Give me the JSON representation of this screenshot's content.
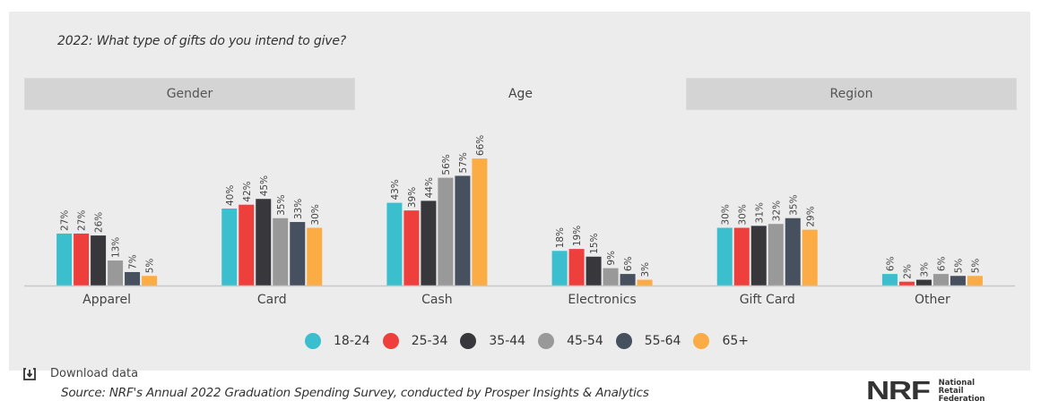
{
  "question": "2022: What type of gifts do you intend to give?",
  "tabs": [
    {
      "label": "Gender",
      "active": false
    },
    {
      "label": "Age",
      "active": true
    },
    {
      "label": "Region",
      "active": false
    }
  ],
  "download_label": "Download data",
  "download_icon": "download-icon",
  "source": "Source: NRF's Annual 2022 Graduation Spending Survey, conducted by Prosper Insights & Analytics",
  "logo": {
    "mark": "NRF",
    "lines": [
      "National",
      "Retail",
      "Federation"
    ]
  },
  "chart_data": {
    "type": "bar",
    "title": "2022: What type of gifts do you intend to give?",
    "xlabel": "",
    "ylabel": "",
    "ylim": [
      0,
      70
    ],
    "grid": false,
    "legend_position": "bottom",
    "value_format": "percent",
    "categories": [
      "Apparel",
      "Card",
      "Cash",
      "Electronics",
      "Gift Card",
      "Other"
    ],
    "series": [
      {
        "name": "18-24",
        "color": "#3bbfce",
        "values": [
          27,
          40,
          43,
          18,
          30,
          6
        ]
      },
      {
        "name": "25-34",
        "color": "#ee3f3d",
        "values": [
          27,
          42,
          39,
          19,
          30,
          2
        ]
      },
      {
        "name": "35-44",
        "color": "#38373c",
        "values": [
          26,
          45,
          44,
          15,
          31,
          3
        ]
      },
      {
        "name": "45-54",
        "color": "#999999",
        "values": [
          13,
          35,
          56,
          9,
          32,
          6
        ]
      },
      {
        "name": "55-64",
        "color": "#46505e",
        "values": [
          7,
          33,
          57,
          6,
          35,
          5
        ]
      },
      {
        "name": "65+",
        "color": "#fbac45",
        "values": [
          5,
          30,
          66,
          3,
          29,
          5
        ]
      }
    ]
  }
}
